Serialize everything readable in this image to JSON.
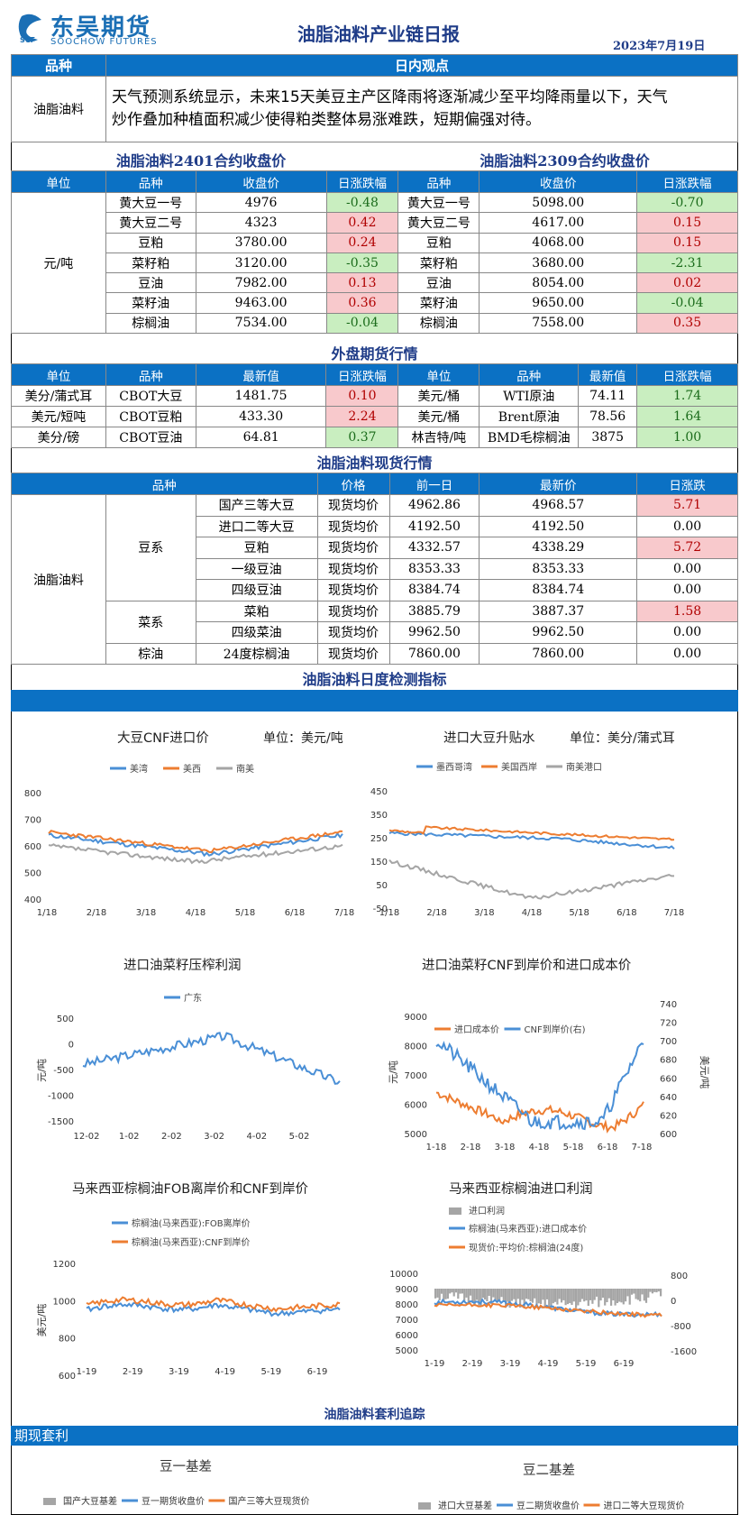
{
  "header": {
    "logo_cn": "东吴期货",
    "logo_en": "SOOCHOW FUTURES",
    "title": "油脂油料产业链日报",
    "date": "2023年7月19日"
  },
  "intraday": {
    "col_variety": "品种",
    "col_view": "日内观点",
    "variety": "油脂油料",
    "text_line1": "天气预测系统显示，未来15天美豆主产区降雨将逐渐减少至平均降雨量以下，天气",
    "text_line2": "炒作叠加种植面积减少使得粕类整体易涨难跌，短期偏强对待。"
  },
  "close_2401": {
    "title": "油脂油料2401合约收盘价",
    "headers": [
      "单位",
      "品种",
      "收盘价",
      "日涨跌幅"
    ],
    "unit": "元/吨",
    "rows": [
      {
        "name": "黄大豆一号",
        "price": "4976",
        "chg": "-0.48",
        "dir": "down"
      },
      {
        "name": "黄大豆二号",
        "price": "4323",
        "chg": "0.42",
        "dir": "up"
      },
      {
        "name": "豆粕",
        "price": "3780.00",
        "chg": "0.24",
        "dir": "up"
      },
      {
        "name": "菜籽粕",
        "price": "3120.00",
        "chg": "-0.35",
        "dir": "down"
      },
      {
        "name": "豆油",
        "price": "7982.00",
        "chg": "0.13",
        "dir": "up"
      },
      {
        "name": "菜籽油",
        "price": "9463.00",
        "chg": "0.36",
        "dir": "up"
      },
      {
        "name": "棕榈油",
        "price": "7534.00",
        "chg": "-0.04",
        "dir": "down"
      }
    ]
  },
  "close_2309": {
    "title": "油脂油料2309合约收盘价",
    "headers": [
      "品种",
      "收盘价",
      "日涨跌幅"
    ],
    "rows": [
      {
        "name": "黄大豆一号",
        "price": "5098.00",
        "chg": "-0.70",
        "dir": "down"
      },
      {
        "name": "黄大豆二号",
        "price": "4617.00",
        "chg": "0.15",
        "dir": "up"
      },
      {
        "name": "豆粕",
        "price": "4068.00",
        "chg": "0.15",
        "dir": "up"
      },
      {
        "name": "菜籽粕",
        "price": "3680.00",
        "chg": "-2.31",
        "dir": "down"
      },
      {
        "name": "豆油",
        "price": "8054.00",
        "chg": "0.02",
        "dir": "up"
      },
      {
        "name": "菜籽油",
        "price": "9650.00",
        "chg": "-0.04",
        "dir": "down"
      },
      {
        "name": "棕榈油",
        "price": "7558.00",
        "chg": "0.35",
        "dir": "up"
      }
    ]
  },
  "foreign": {
    "title": "外盘期货行情",
    "headers": [
      "单位",
      "品种",
      "最新值",
      "日涨跌幅",
      "单位",
      "品种",
      "最新值",
      "日涨跌幅"
    ],
    "rows": [
      {
        "u1": "美分/蒲式耳",
        "n1": "CBOT大豆",
        "v1": "1481.75",
        "c1": "0.10",
        "d1": "up",
        "u2": "美元/桶",
        "n2": "WTI原油",
        "v2": "74.11",
        "c2": "1.74",
        "d2": "down"
      },
      {
        "u1": "美元/短吨",
        "n1": "CBOT豆粕",
        "v1": "433.30",
        "c1": "2.24",
        "d1": "up",
        "u2": "美元/桶",
        "n2": "Brent原油",
        "v2": "78.56",
        "c2": "1.64",
        "d2": "down"
      },
      {
        "u1": "美分/磅",
        "n1": "CBOT豆油",
        "v1": "64.81",
        "c1": "0.37",
        "d1": "down",
        "u2": "林吉特/吨",
        "n2": "BMD毛棕榈油",
        "v2": "3875",
        "c2": "1.00",
        "d2": "down"
      }
    ]
  },
  "spot": {
    "title": "油脂油料现货行情",
    "headers": [
      "品种",
      "价格",
      "前一日",
      "最新价",
      "日涨跌"
    ],
    "category": "油脂油料",
    "groups": [
      "豆系",
      "菜系",
      "棕油"
    ],
    "rows": [
      {
        "name": "国产三等大豆",
        "type": "现货均价",
        "prev": "4962.86",
        "last": "4968.57",
        "chg": "5.71",
        "dir": "up"
      },
      {
        "name": "进口二等大豆",
        "type": "现货均价",
        "prev": "4192.50",
        "last": "4192.50",
        "chg": "0.00",
        "dir": "flat"
      },
      {
        "name": "豆粕",
        "type": "现货均价",
        "prev": "4332.57",
        "last": "4338.29",
        "chg": "5.72",
        "dir": "up"
      },
      {
        "name": "一级豆油",
        "type": "现货均价",
        "prev": "8353.33",
        "last": "8353.33",
        "chg": "0.00",
        "dir": "flat"
      },
      {
        "name": "四级豆油",
        "type": "现货均价",
        "prev": "8384.74",
        "last": "8384.74",
        "chg": "0.00",
        "dir": "flat"
      },
      {
        "name": "菜粕",
        "type": "现货均价",
        "prev": "3885.79",
        "last": "3887.37",
        "chg": "1.58",
        "dir": "up"
      },
      {
        "name": "四级菜油",
        "type": "现货均价",
        "prev": "9962.50",
        "last": "9962.50",
        "chg": "0.00",
        "dir": "flat"
      },
      {
        "name": "24度棕榈油",
        "type": "现货均价",
        "prev": "7860.00",
        "last": "7860.00",
        "chg": "0.00",
        "dir": "flat"
      }
    ]
  },
  "monitor_title": "油脂油料日度检测指标",
  "arb_title": "油脂油料套利追踪",
  "arb_bar": "期现套利",
  "charts": {
    "c1": {
      "title": "大豆CNF进口价",
      "unit": "单位：美元/吨",
      "legend": [
        "美湾",
        "美西",
        "南美"
      ],
      "yticks": [
        "800",
        "700",
        "600",
        "500",
        "400"
      ],
      "xticks": [
        "1/18",
        "2/18",
        "3/18",
        "4/18",
        "5/18",
        "6/18",
        "7/18"
      ],
      "colors": [
        "#4a8fd6",
        "#ed7d31",
        "#a5a5a5"
      ]
    },
    "c2": {
      "title": "进口大豆升贴水",
      "unit": "单位：美分/蒲式耳",
      "legend": [
        "墨西哥湾",
        "美国西岸",
        "南美港口"
      ],
      "yticks": [
        "450",
        "350",
        "250",
        "150",
        "50",
        "-50"
      ],
      "xticks": [
        "1/18",
        "2/18",
        "3/18",
        "4/18",
        "5/18",
        "6/18",
        "7/18"
      ],
      "colors": [
        "#4a8fd6",
        "#ed7d31",
        "#a5a5a5"
      ]
    },
    "c3": {
      "title": "进口油菜籽压榨利润",
      "legend": [
        "广东"
      ],
      "ylabel": "元/吨",
      "yticks": [
        "500",
        "0",
        "-500",
        "-1000",
        "-1500"
      ],
      "xticks": [
        "12-02",
        "1-02",
        "2-02",
        "3-02",
        "4-02",
        "5-02"
      ],
      "colors": [
        "#4a8fd6"
      ]
    },
    "c4": {
      "title": "进口油菜籽CNF到岸价和进口成本价",
      "legend": [
        "进口成本价",
        "CNF到岸价(右)"
      ],
      "ylabel": "元/吨",
      "ylabel2": "美元/吨",
      "yticks": [
        "9000",
        "8000",
        "7000",
        "6000",
        "5000"
      ],
      "yticks2": [
        "740",
        "720",
        "700",
        "680",
        "660",
        "640",
        "620",
        "600"
      ],
      "xticks": [
        "1-18",
        "2-18",
        "3-18",
        "4-18",
        "5-18",
        "6-18",
        "7-18"
      ],
      "colors": [
        "#ed7d31",
        "#4a8fd6"
      ]
    },
    "c5": {
      "title": "马来西亚棕榈油FOB离岸价和CNF到岸价",
      "legend": [
        "棕榈油(马来西亚):FOB离岸价",
        "棕榈油(马来西亚):CNF到岸价"
      ],
      "ylabel": "美元/吨",
      "yticks": [
        "1200",
        "1000",
        "800",
        "600"
      ],
      "xticks": [
        "1-19",
        "2-19",
        "3-19",
        "4-19",
        "5-19",
        "6-19"
      ],
      "colors": [
        "#4a8fd6",
        "#ed7d31"
      ]
    },
    "c6": {
      "title": "马来西亚棕榈油进口利润",
      "legend": [
        "进口利润",
        "棕榈油(马来西亚):进口成本价",
        "现货价:平均价:棕榈油(24度)"
      ],
      "yticks": [
        "10000",
        "9000",
        "8000",
        "7000",
        "6000",
        "5000"
      ],
      "yticks2": [
        "800",
        "0",
        "-800",
        "-1600"
      ],
      "xticks": [
        "1-19",
        "2-19",
        "3-19",
        "4-19",
        "5-19",
        "6-19"
      ],
      "colors": [
        "#a5a5a5",
        "#4a8fd6",
        "#ed7d31"
      ]
    },
    "c7": {
      "title": "豆一基差",
      "legend": [
        "国产大豆基差",
        "豆一期货收盘价",
        "国产三等大豆现货价"
      ],
      "colors": [
        "#a5a5a5",
        "#4a8fd6",
        "#ed7d31"
      ]
    },
    "c8": {
      "title": "豆二基差",
      "legend": [
        "进口大豆基差",
        "豆二期货收盘价",
        "进口二等大豆现货价"
      ],
      "colors": [
        "#a5a5a5",
        "#4a8fd6",
        "#ed7d31"
      ]
    }
  }
}
